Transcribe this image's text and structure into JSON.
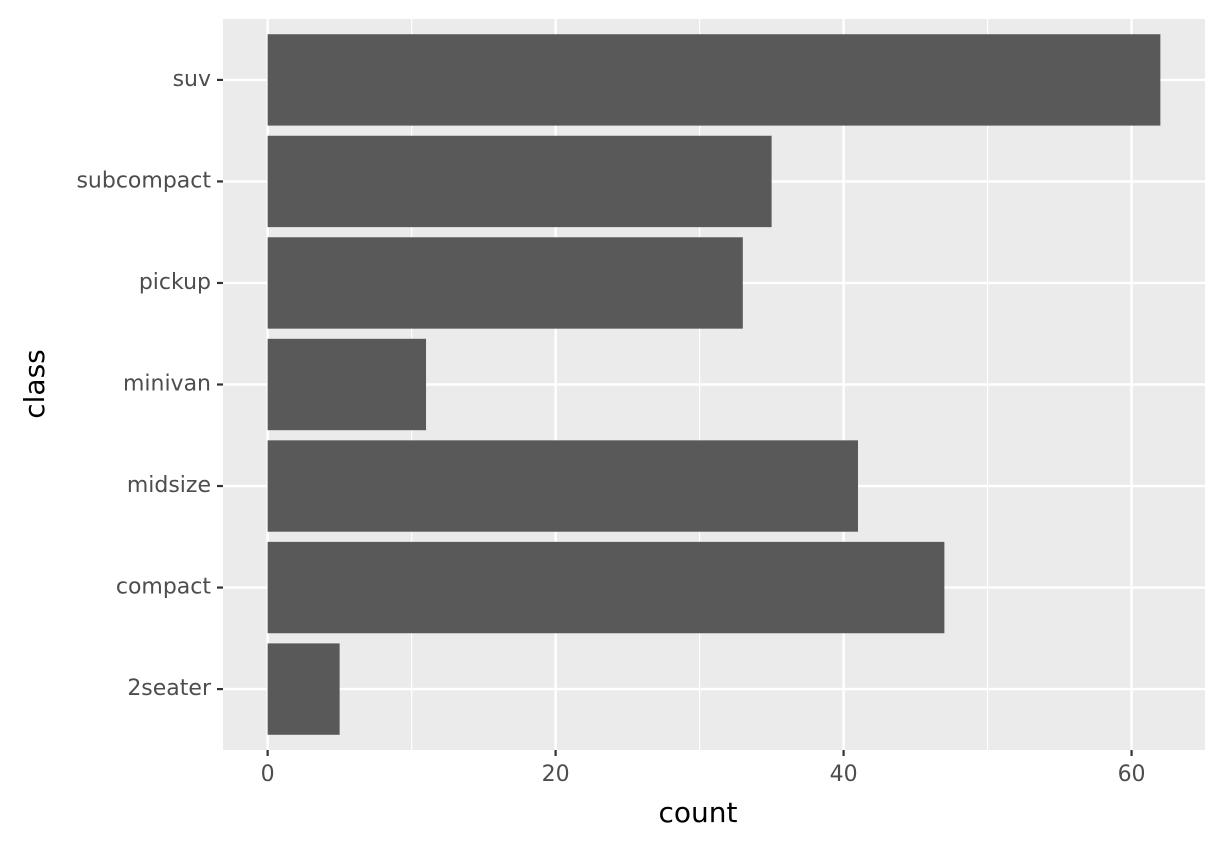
{
  "chart_data": {
    "type": "bar",
    "orientation": "horizontal",
    "x_label": "count",
    "y_label": "class",
    "categories": [
      "2seater",
      "compact",
      "midsize",
      "minivan",
      "pickup",
      "subcompact",
      "suv"
    ],
    "values": [
      5,
      47,
      41,
      11,
      33,
      35,
      62
    ],
    "color": "#595959",
    "xlim": [
      -3.1,
      65.1
    ],
    "xticks": [
      0,
      20,
      40,
      60
    ],
    "xminorticks": [
      10,
      30,
      50
    ],
    "grid": true
  }
}
